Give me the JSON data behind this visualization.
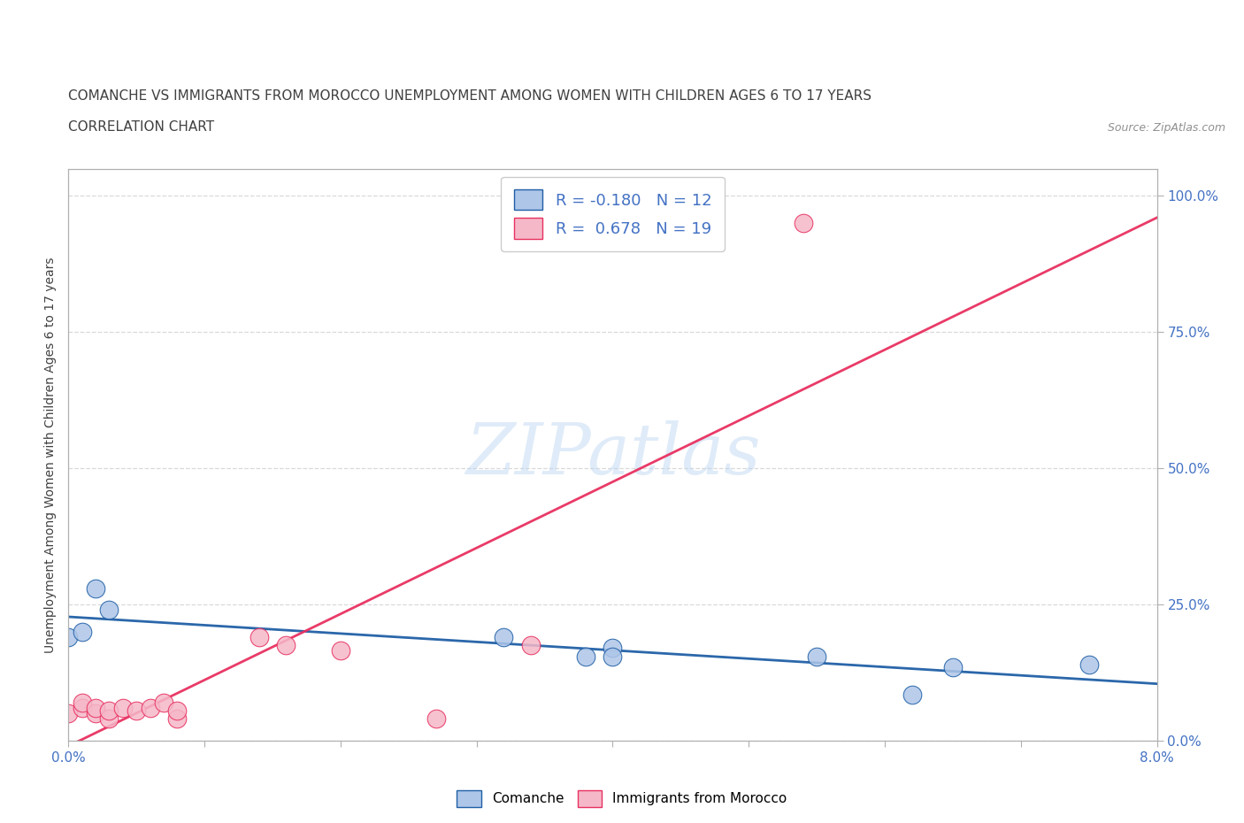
{
  "title_line1": "COMANCHE VS IMMIGRANTS FROM MOROCCO UNEMPLOYMENT AMONG WOMEN WITH CHILDREN AGES 6 TO 17 YEARS",
  "title_line2": "CORRELATION CHART",
  "source_text": "Source: ZipAtlas.com",
  "ylabel_label": "Unemployment Among Women with Children Ages 6 to 17 years",
  "xmin": 0.0,
  "xmax": 0.08,
  "ymin": 0.0,
  "ymax": 1.05,
  "xticks": [
    0.0,
    0.01,
    0.02,
    0.03,
    0.04,
    0.05,
    0.06,
    0.07,
    0.08
  ],
  "yticks": [
    0.0,
    0.25,
    0.5,
    0.75,
    1.0
  ],
  "ytick_labels": [
    "0.0%",
    "25.0%",
    "50.0%",
    "75.0%",
    "100.0%"
  ],
  "xtick_labels": [
    "0.0%",
    "",
    "",
    "",
    "",
    "",
    "",
    "",
    "8.0%"
  ],
  "comanche_r": -0.18,
  "comanche_n": 12,
  "morocco_r": 0.678,
  "morocco_n": 19,
  "comanche_color": "#aec6e8",
  "comanche_line_color": "#1f5fa6",
  "morocco_color": "#f5b8c8",
  "morocco_line_color": "#e83060",
  "comanche_points": [
    [
      0.0,
      0.19
    ],
    [
      0.001,
      0.2
    ],
    [
      0.002,
      0.28
    ],
    [
      0.003,
      0.24
    ],
    [
      0.032,
      0.19
    ],
    [
      0.038,
      0.155
    ],
    [
      0.04,
      0.17
    ],
    [
      0.04,
      0.155
    ],
    [
      0.055,
      0.155
    ],
    [
      0.062,
      0.085
    ],
    [
      0.065,
      0.135
    ],
    [
      0.075,
      0.14
    ]
  ],
  "morocco_points": [
    [
      0.0,
      0.05
    ],
    [
      0.001,
      0.06
    ],
    [
      0.001,
      0.07
    ],
    [
      0.002,
      0.05
    ],
    [
      0.002,
      0.06
    ],
    [
      0.003,
      0.04
    ],
    [
      0.003,
      0.055
    ],
    [
      0.004,
      0.06
    ],
    [
      0.005,
      0.055
    ],
    [
      0.006,
      0.06
    ],
    [
      0.007,
      0.07
    ],
    [
      0.008,
      0.04
    ],
    [
      0.008,
      0.055
    ],
    [
      0.014,
      0.19
    ],
    [
      0.016,
      0.175
    ],
    [
      0.02,
      0.165
    ],
    [
      0.034,
      0.175
    ],
    [
      0.027,
      0.04
    ],
    [
      0.054,
      0.95
    ]
  ],
  "watermark_text": "ZIPatlas",
  "background_color": "#ffffff",
  "grid_color": "#d0d0d0",
  "axis_color": "#b0b0b0",
  "tick_label_color": "#4472c4",
  "title_color": "#404040",
  "legend_label_comanche": "Comanche",
  "legend_label_morocco": "Immigrants from Morocco"
}
